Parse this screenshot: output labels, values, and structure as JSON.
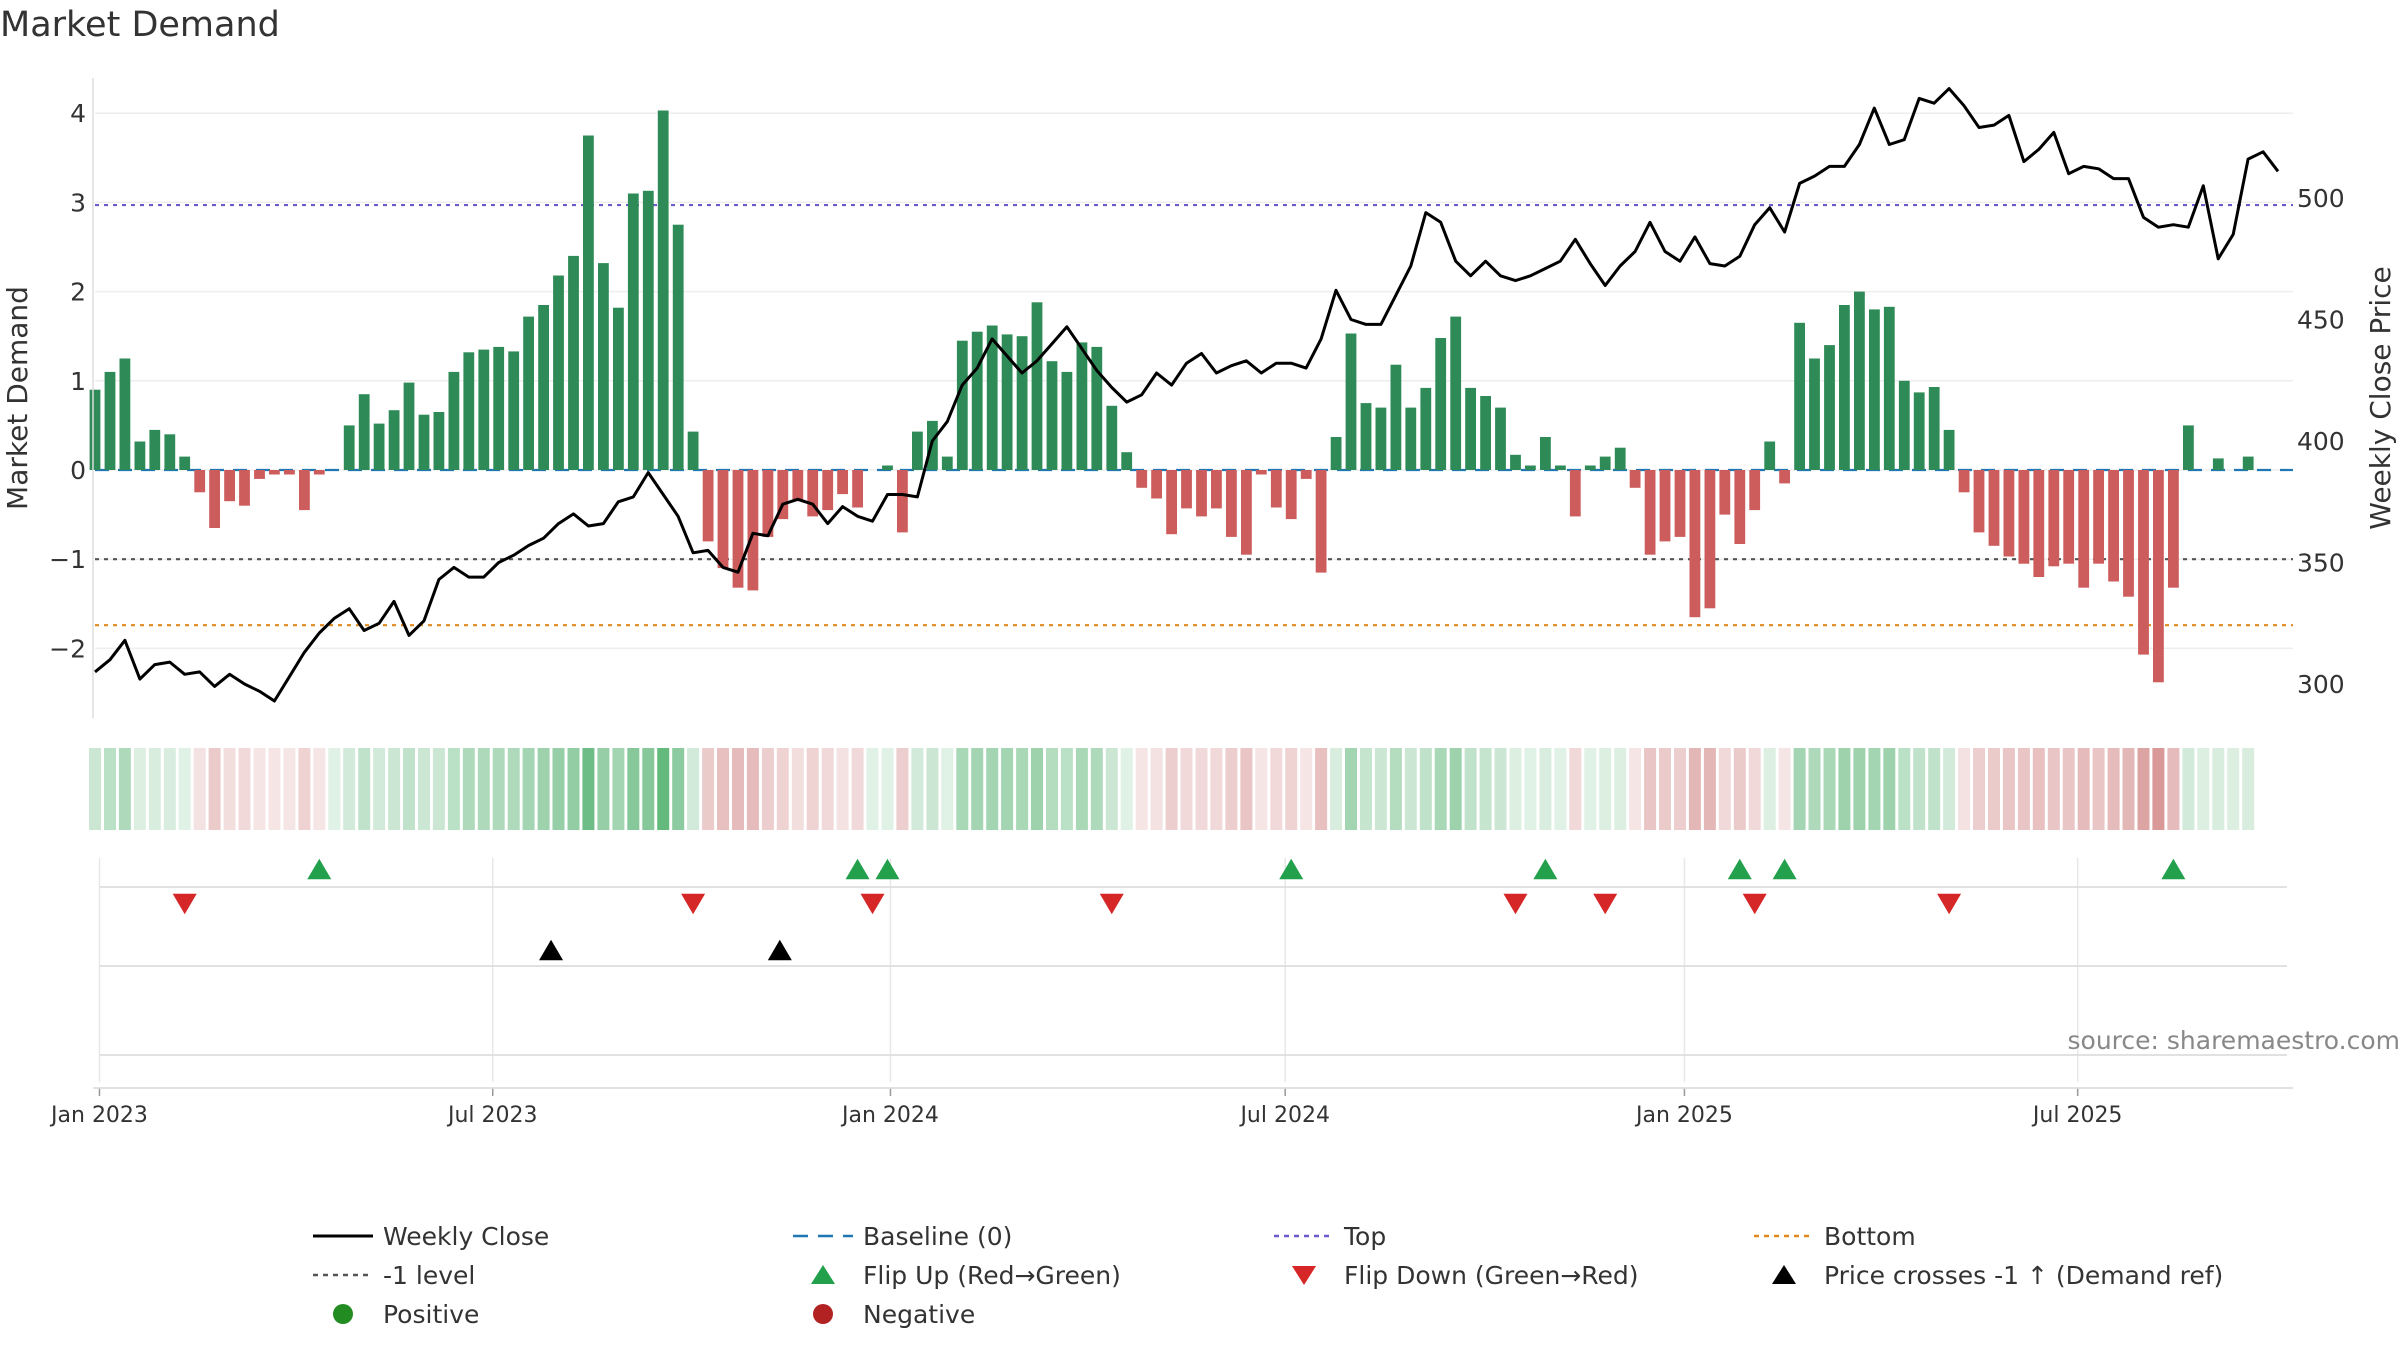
{
  "chart_data": {
    "type": "bar",
    "title": "Market Demand",
    "ylabel": "Market Demand",
    "y2label": "Weekly Close Price",
    "ylim": [
      -2.7,
      4.05
    ],
    "y2lim": [
      290,
      544
    ],
    "yticks": [
      4,
      3,
      2,
      1,
      0,
      -1,
      -2
    ],
    "y2ticks": [
      500,
      450,
      400,
      350,
      300
    ],
    "x_start_week": 0,
    "x_end_week": 147,
    "xtick_labels": [
      {
        "label": "Jan 2023",
        "week": 0.3
      },
      {
        "label": "Jul 2023",
        "week": 26.6
      },
      {
        "label": "Jan 2024",
        "week": 53.2
      },
      {
        "label": "Jul 2024",
        "week": 79.6
      },
      {
        "label": "Jan 2025",
        "week": 106.3
      },
      {
        "label": "Jul 2025",
        "week": 132.6
      }
    ],
    "reference_lines": {
      "top": 2.97,
      "minus_one": -1.0,
      "bottom": -1.74,
      "baseline": 0
    },
    "colors": {
      "positive": "#2e8b57",
      "negative": "#cd5c5c",
      "close": "#000000",
      "baseline": "#1f77b4",
      "top": "#6a5acd",
      "minus_one": "#555555",
      "bottom": "#e08a1e",
      "flip_up": "#22a04b",
      "flip_down": "#d62728",
      "cross": "#000000",
      "positive_dot": "#228b22",
      "negative_dot": "#b22222"
    },
    "demand": [
      0.9,
      1.1,
      1.25,
      0.32,
      0.45,
      0.4,
      0.15,
      -0.25,
      -0.65,
      -0.35,
      -0.4,
      -0.1,
      -0.05,
      -0.05,
      -0.45,
      -0.05,
      0,
      0.5,
      0.85,
      0.52,
      0.67,
      0.98,
      0.62,
      0.65,
      1.1,
      1.32,
      1.35,
      1.38,
      1.33,
      1.72,
      1.85,
      2.18,
      2.4,
      3.75,
      2.32,
      1.82,
      3.1,
      3.13,
      4.03,
      2.75,
      0.43,
      -0.8,
      -1.1,
      -1.32,
      -1.35,
      -0.75,
      -0.55,
      -0.35,
      -0.52,
      -0.45,
      -0.27,
      -0.42,
      0,
      0.05,
      -0.7,
      0.43,
      0.55,
      0.15,
      1.45,
      1.55,
      1.62,
      1.52,
      1.5,
      1.88,
      1.22,
      1.1,
      1.43,
      1.38,
      0.72,
      0.2,
      -0.2,
      -0.32,
      -0.72,
      -0.43,
      -0.52,
      -0.43,
      -0.75,
      -0.95,
      -0.05,
      -0.42,
      -0.55,
      -0.1,
      -1.15,
      0.37,
      1.53,
      0.75,
      0.7,
      1.18,
      0.7,
      0.92,
      1.48,
      1.72,
      0.92,
      0.83,
      0.7,
      0.17,
      0.05,
      0.37,
      0.05,
      -0.52,
      0.05,
      0.15,
      0.25,
      -0.2,
      -0.95,
      -0.8,
      -0.75,
      -1.65,
      -1.55,
      -0.5,
      -0.83,
      -0.45,
      0.32,
      -0.15,
      1.65,
      1.25,
      1.4,
      1.85,
      2.0,
      1.8,
      1.83,
      1.0,
      0.87,
      0.93,
      0.45,
      -0.25,
      -0.7,
      -0.85,
      -0.97,
      -1.05,
      -1.2,
      -1.08,
      -1.05,
      -1.32,
      -1.05,
      -1.25,
      -1.42,
      -2.07,
      -2.38,
      -1.32,
      0.5,
      0,
      0.13,
      0,
      0.15
    ],
    "close": [
      305,
      310,
      318,
      302,
      308,
      309,
      304,
      305,
      299,
      304,
      300,
      297,
      293,
      303,
      313,
      321,
      327,
      331,
      322,
      325,
      334,
      320,
      326,
      343,
      348,
      344,
      344,
      350,
      353,
      357,
      360,
      366,
      370,
      365,
      366,
      375,
      377,
      387,
      378,
      369,
      354,
      355,
      348,
      346,
      362,
      361,
      374,
      376,
      374,
      366,
      373,
      369,
      367,
      378,
      378,
      377,
      400,
      408,
      423,
      430,
      442,
      435,
      428,
      433,
      440,
      447,
      438,
      429,
      422,
      416,
      419,
      428,
      423,
      432,
      436,
      428,
      431,
      433,
      428,
      432,
      432,
      430,
      442,
      462,
      450,
      448,
      448,
      460,
      472,
      494,
      490,
      474,
      468,
      474,
      468,
      466,
      468,
      471,
      474,
      483,
      473,
      464,
      472,
      478,
      490,
      478,
      474,
      484,
      473,
      472,
      476,
      489,
      496,
      486,
      506,
      509,
      513,
      513,
      522,
      537,
      522,
      524,
      541,
      539,
      545,
      538,
      529,
      530,
      534,
      515,
      520,
      527,
      510,
      513,
      512,
      508,
      508,
      492,
      488,
      489,
      488,
      505,
      475,
      485,
      516,
      519,
      511
    ],
    "heatmap_intensity": [
      0.45,
      0.6,
      0.7,
      0.3,
      0.35,
      0.35,
      0.2,
      0.3,
      0.55,
      0.35,
      0.4,
      0.2,
      0.2,
      0.2,
      0.45,
      0.2,
      0.2,
      0.4,
      0.55,
      0.4,
      0.45,
      0.55,
      0.45,
      0.45,
      0.6,
      0.7,
      0.7,
      0.7,
      0.7,
      0.8,
      0.85,
      0.9,
      0.95,
      1.25,
      0.9,
      0.8,
      1.05,
      1.05,
      1.35,
      1.0,
      0.4,
      0.55,
      0.65,
      0.7,
      0.7,
      0.5,
      0.45,
      0.35,
      0.45,
      0.4,
      0.3,
      0.4,
      0.2,
      0.2,
      0.5,
      0.4,
      0.45,
      0.25,
      0.75,
      0.8,
      0.8,
      0.8,
      0.75,
      0.85,
      0.65,
      0.6,
      0.75,
      0.7,
      0.45,
      0.25,
      0.25,
      0.3,
      0.5,
      0.4,
      0.4,
      0.4,
      0.5,
      0.6,
      0.2,
      0.4,
      0.45,
      0.2,
      0.65,
      0.35,
      0.8,
      0.5,
      0.45,
      0.65,
      0.45,
      0.55,
      0.75,
      0.85,
      0.55,
      0.5,
      0.45,
      0.3,
      0.25,
      0.35,
      0.25,
      0.4,
      0.25,
      0.3,
      0.3,
      0.25,
      0.6,
      0.55,
      0.5,
      0.75,
      0.75,
      0.4,
      0.55,
      0.4,
      0.3,
      0.2,
      0.8,
      0.7,
      0.75,
      0.85,
      0.85,
      0.8,
      0.85,
      0.6,
      0.55,
      0.55,
      0.4,
      0.3,
      0.5,
      0.55,
      0.6,
      0.6,
      0.65,
      0.6,
      0.6,
      0.7,
      0.6,
      0.7,
      0.75,
      0.95,
      1.05,
      0.7,
      0.4,
      0.3,
      0.35,
      0.3,
      0.35
    ],
    "flip_up_weeks": [
      15,
      51,
      53,
      80,
      97,
      110,
      113,
      139
    ],
    "flip_down_weeks": [
      6,
      40,
      52,
      68,
      95,
      101,
      111,
      124
    ],
    "price_cross_weeks": [
      30.5,
      45.8
    ],
    "source_text": "source: sharemaestro.com",
    "legend": [
      {
        "label": "Weekly Close",
        "kind": "line-solid",
        "color": "#000000"
      },
      {
        "label": "Baseline (0)",
        "kind": "line-dash",
        "color": "#1f77b4"
      },
      {
        "label": "Top",
        "kind": "line-dot",
        "color": "#6a5acd"
      },
      {
        "label": "Bottom",
        "kind": "line-dot",
        "color": "#e08a1e"
      },
      {
        "label": "-1 level",
        "kind": "line-dot",
        "color": "#555555"
      },
      {
        "label": "Flip Up (Red→Green)",
        "kind": "tri-up",
        "color": "#22a04b"
      },
      {
        "label": "Flip Down (Green→Red)",
        "kind": "tri-down",
        "color": "#d62728"
      },
      {
        "label": "Price crosses -1 ↑ (Demand ref)",
        "kind": "tri-up",
        "color": "#000000"
      },
      {
        "label": "Positive",
        "kind": "dot",
        "color": "#228b22"
      },
      {
        "label": "Negative",
        "kind": "dot",
        "color": "#b22222"
      }
    ]
  }
}
